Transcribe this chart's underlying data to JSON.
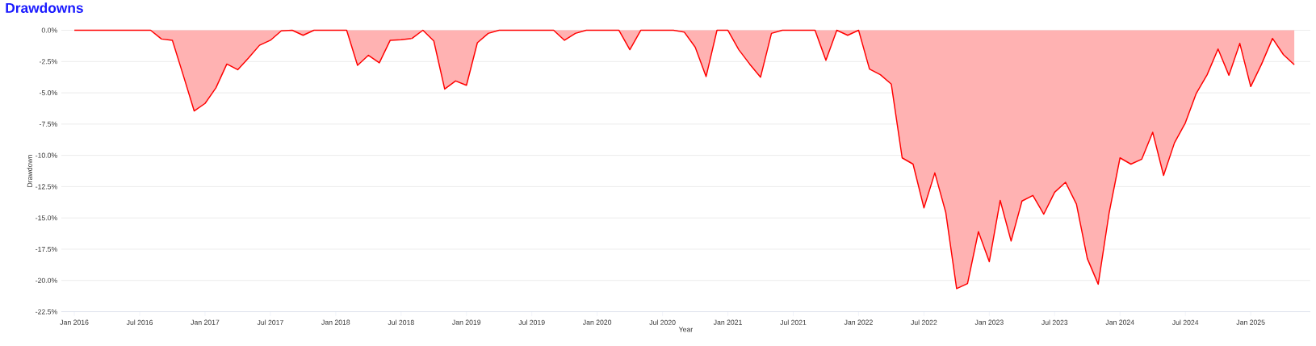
{
  "chart_data": {
    "type": "area",
    "title": "Drawdowns",
    "xlabel": "Year",
    "ylabel": "Drawdown",
    "x": [
      "2016-01",
      "2016-02",
      "2016-03",
      "2016-04",
      "2016-05",
      "2016-06",
      "2016-07",
      "2016-08",
      "2016-09",
      "2016-10",
      "2016-11",
      "2016-12",
      "2017-01",
      "2017-02",
      "2017-03",
      "2017-04",
      "2017-05",
      "2017-06",
      "2017-07",
      "2017-08",
      "2017-09",
      "2017-10",
      "2017-11",
      "2017-12",
      "2018-01",
      "2018-02",
      "2018-03",
      "2018-04",
      "2018-05",
      "2018-06",
      "2018-07",
      "2018-08",
      "2018-09",
      "2018-10",
      "2018-11",
      "2018-12",
      "2019-01",
      "2019-02",
      "2019-03",
      "2019-04",
      "2019-05",
      "2019-06",
      "2019-07",
      "2019-08",
      "2019-09",
      "2019-10",
      "2019-11",
      "2019-12",
      "2020-01",
      "2020-02",
      "2020-03",
      "2020-04",
      "2020-05",
      "2020-06",
      "2020-07",
      "2020-08",
      "2020-09",
      "2020-10",
      "2020-11",
      "2020-12",
      "2021-01",
      "2021-02",
      "2021-03",
      "2021-04",
      "2021-05",
      "2021-06",
      "2021-07",
      "2021-08",
      "2021-09",
      "2021-10",
      "2021-11",
      "2021-12",
      "2022-01",
      "2022-02",
      "2022-03",
      "2022-04",
      "2022-05",
      "2022-06",
      "2022-07",
      "2022-08",
      "2022-09",
      "2022-10",
      "2022-11",
      "2022-12",
      "2023-01",
      "2023-02",
      "2023-03",
      "2023-04",
      "2023-05",
      "2023-06",
      "2023-07",
      "2023-08",
      "2023-09",
      "2023-10",
      "2023-11",
      "2023-12",
      "2024-01",
      "2024-02",
      "2024-03",
      "2024-04",
      "2024-05",
      "2024-06",
      "2024-07",
      "2024-08",
      "2024-09",
      "2024-10",
      "2024-11",
      "2024-12",
      "2025-01",
      "2025-02",
      "2025-03",
      "2025-04",
      "2025-05"
    ],
    "series": [
      {
        "color": "#ff0000",
        "values": [
          0,
          0,
          0,
          0,
          0,
          0,
          0,
          0,
          -0.7,
          -0.8,
          -3.6,
          -6.45,
          -5.85,
          -4.6,
          -2.7,
          -3.15,
          -2.2,
          -1.2,
          -0.8,
          -0.05,
          0,
          -0.4,
          0,
          0,
          0,
          0,
          -2.8,
          -2.0,
          -2.6,
          -0.8,
          -0.75,
          -0.65,
          0,
          -0.85,
          -4.7,
          -4.05,
          -4.4,
          -1.0,
          -0.25,
          0,
          0,
          0,
          0,
          0,
          0,
          -0.8,
          -0.25,
          0,
          0,
          0,
          0,
          -1.55,
          0,
          0,
          0,
          0,
          -0.15,
          -1.35,
          -3.7,
          0,
          0,
          -1.55,
          -2.7,
          -3.75,
          -0.25,
          0,
          0,
          0,
          0,
          -2.4,
          0,
          -0.4,
          0,
          -3.1,
          -3.55,
          -4.3,
          -10.2,
          -10.7,
          -14.2,
          -11.4,
          -14.55,
          -20.65,
          -20.25,
          -16.1,
          -18.5,
          -13.6,
          -16.85,
          -13.65,
          -13.2,
          -14.7,
          -12.95,
          -12.15,
          -13.9,
          -18.25,
          -20.3,
          -14.6,
          -10.2,
          -10.7,
          -10.3,
          -8.15,
          -11.6,
          -9.0,
          -7.4,
          -5.05,
          -3.55,
          -1.5,
          -3.6,
          -1.05,
          -4.5,
          -2.7,
          -0.65,
          -1.95,
          -2.75
        ]
      }
    ],
    "xlim": [
      "2015-11-25",
      "2025-06-15"
    ],
    "xticks": [
      {
        "value": "2016-01",
        "label": "Jan 2016"
      },
      {
        "value": "2016-07",
        "label": "Jul 2016"
      },
      {
        "value": "2017-01",
        "label": "Jan 2017"
      },
      {
        "value": "2017-07",
        "label": "Jul 2017"
      },
      {
        "value": "2018-01",
        "label": "Jan 2018"
      },
      {
        "value": "2018-07",
        "label": "Jul 2018"
      },
      {
        "value": "2019-01",
        "label": "Jan 2019"
      },
      {
        "value": "2019-07",
        "label": "Jul 2019"
      },
      {
        "value": "2020-01",
        "label": "Jan 2020"
      },
      {
        "value": "2020-07",
        "label": "Jul 2020"
      },
      {
        "value": "2021-01",
        "label": "Jan 2021"
      },
      {
        "value": "2021-07",
        "label": "Jul 2021"
      },
      {
        "value": "2022-01",
        "label": "Jan 2022"
      },
      {
        "value": "2022-07",
        "label": "Jul 2022"
      },
      {
        "value": "2023-01",
        "label": "Jan 2023"
      },
      {
        "value": "2023-07",
        "label": "Jul 2023"
      },
      {
        "value": "2024-01",
        "label": "Jan 2024"
      },
      {
        "value": "2024-07",
        "label": "Jul 2024"
      },
      {
        "value": "2025-01",
        "label": "Jan 2025"
      }
    ],
    "ylim": [
      -22.5,
      0
    ],
    "yticks": [
      {
        "value": 0,
        "label": "0.0%"
      },
      {
        "value": -2.5,
        "label": "-2.5%"
      },
      {
        "value": -5,
        "label": "-5.0%"
      },
      {
        "value": -7.5,
        "label": "-7.5%"
      },
      {
        "value": -10,
        "label": "-10.0%"
      },
      {
        "value": -12.5,
        "label": "-12.5%"
      },
      {
        "value": -15,
        "label": "-15.0%"
      },
      {
        "value": -17.5,
        "label": "-17.5%"
      },
      {
        "value": -20,
        "label": "-20.0%"
      },
      {
        "value": -22.5,
        "label": "-22.5%"
      }
    ],
    "grid": "y"
  }
}
